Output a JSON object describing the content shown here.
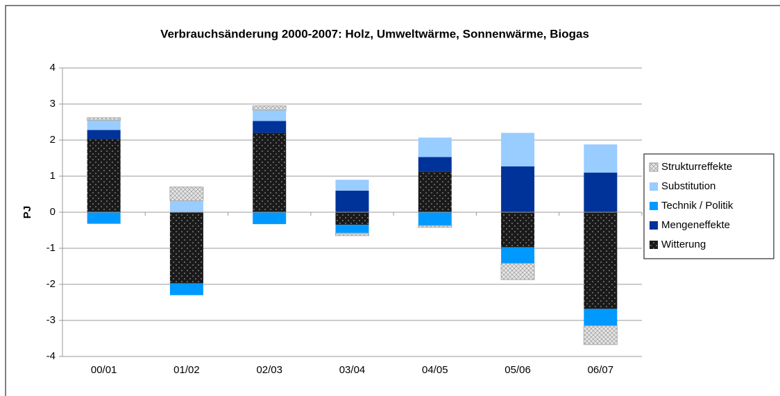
{
  "chart_data": {
    "type": "stacked_bar",
    "title": "Verbrauchsänderung 2000-2007: Holz, Umweltwärme, Sonnenwärme, Biogas",
    "ylabel": "PJ",
    "categories": [
      "00/01",
      "01/02",
      "02/03",
      "03/04",
      "04/05",
      "05/06",
      "06/07"
    ],
    "series": [
      {
        "name": "Witterung",
        "color": "#1a1a1a",
        "pattern": "dots",
        "values": [
          2.03,
          -1.97,
          2.2,
          -0.35,
          1.13,
          -0.97,
          -2.68
        ]
      },
      {
        "name": "Mengeneffekte",
        "color": "#003399",
        "values": [
          0.25,
          0,
          0.33,
          0.6,
          0.4,
          1.27,
          1.1
        ]
      },
      {
        "name": "Technik / Politik",
        "color": "#0099ff",
        "values": [
          -0.32,
          -0.33,
          -0.33,
          -0.23,
          -0.37,
          -0.45,
          -0.47
        ]
      },
      {
        "name": "Substitution",
        "color": "#99ccff",
        "values": [
          0.27,
          0.32,
          0.3,
          0.3,
          0.54,
          0.93,
          0.78
        ]
      },
      {
        "name": "Strukturreffekte",
        "color": "#d9d9d9",
        "pattern": "crosshatch",
        "values": [
          0.07,
          0.38,
          0.12,
          -0.07,
          -0.05,
          -0.45,
          -0.52
        ]
      }
    ],
    "ylim": [
      -4,
      4
    ],
    "yticks": [
      -4,
      -3,
      -2,
      -1,
      0,
      1,
      2,
      3,
      4
    ],
    "grid": true,
    "legend": "right"
  }
}
